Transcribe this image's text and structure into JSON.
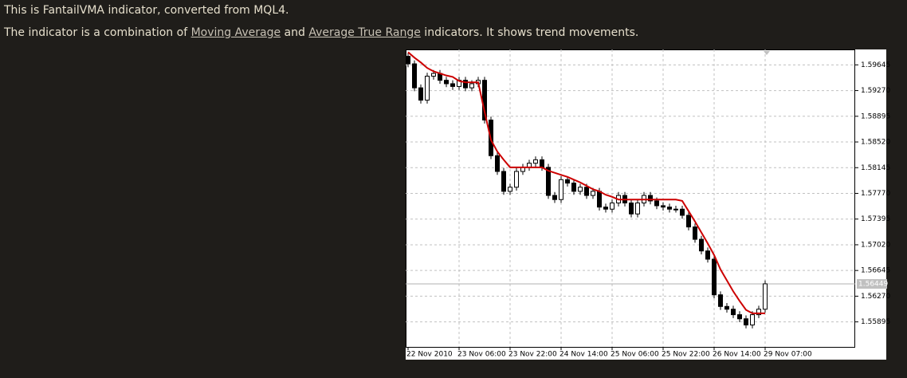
{
  "intro": "This is FantailVMA indicator, converted from MQL4.",
  "description": {
    "before": "The indicator is a combination of ",
    "link1": "Moving Average",
    "middle": " and ",
    "link2": "Average True Range",
    "after": " indicators. It shows trend movements."
  },
  "chart_data": {
    "type": "candlestick",
    "categories": [
      "22 Nov 2010",
      null,
      null,
      null,
      null,
      null,
      null,
      null,
      "23 Nov 06:00",
      null,
      null,
      null,
      null,
      null,
      null,
      null,
      "23 Nov 22:00",
      null,
      null,
      null,
      null,
      null,
      null,
      null,
      "24 Nov 14:00",
      null,
      null,
      null,
      null,
      null,
      null,
      null,
      "25 Nov 06:00",
      null,
      null,
      null,
      null,
      null,
      null,
      null,
      "25 Nov 22:00",
      null,
      null,
      null,
      null,
      null,
      null,
      null,
      "26 Nov 14:00",
      null,
      null,
      null,
      null,
      null,
      null,
      null,
      "29 Nov 07:00"
    ],
    "open": [
      1.5977,
      1.5966,
      1.5931,
      1.5913,
      1.5948,
      1.5952,
      1.5942,
      1.5937,
      1.5933,
      1.5942,
      1.5931,
      1.5937,
      1.5942,
      1.5884,
      1.5832,
      1.5809,
      1.578,
      1.5786,
      1.5809,
      1.5815,
      1.5821,
      1.5826,
      1.5815,
      1.5774,
      1.5768,
      1.5797,
      1.5792,
      1.578,
      1.5786,
      1.5774,
      1.578,
      1.5757,
      1.5754,
      1.5763,
      1.5774,
      1.5763,
      1.5747,
      1.5763,
      1.5774,
      1.5766,
      1.5759,
      1.5757,
      1.5754,
      1.5754,
      1.5745,
      1.5728,
      1.571,
      1.5693,
      1.5681,
      1.5629,
      1.5612,
      1.5608,
      1.56,
      1.5594,
      1.5585,
      1.56,
      1.5608
    ],
    "high": [
      1.5982,
      1.5971,
      1.5936,
      1.5953,
      1.5957,
      1.5957,
      1.5947,
      1.5942,
      1.5947,
      1.5947,
      1.5942,
      1.5947,
      1.5947,
      1.5889,
      1.5837,
      1.5814,
      1.5791,
      1.5814,
      1.582,
      1.5826,
      1.5831,
      1.5831,
      1.582,
      1.5779,
      1.5802,
      1.5802,
      1.5797,
      1.5791,
      1.5791,
      1.5785,
      1.5785,
      1.5762,
      1.5768,
      1.5779,
      1.5779,
      1.5768,
      1.5768,
      1.5779,
      1.5779,
      1.5771,
      1.5764,
      1.5762,
      1.5759,
      1.5759,
      1.575,
      1.5733,
      1.5715,
      1.5698,
      1.5686,
      1.5634,
      1.5617,
      1.5613,
      1.5605,
      1.5599,
      1.5605,
      1.5613,
      1.565
    ],
    "low": [
      1.5961,
      1.5926,
      1.5908,
      1.5908,
      1.5943,
      1.5937,
      1.5932,
      1.5928,
      1.5928,
      1.5926,
      1.5926,
      1.5932,
      1.5879,
      1.5827,
      1.5804,
      1.5775,
      1.5775,
      1.5781,
      1.5804,
      1.581,
      1.5816,
      1.581,
      1.5769,
      1.5763,
      1.5763,
      1.5787,
      1.5775,
      1.5775,
      1.5769,
      1.5769,
      1.5752,
      1.5749,
      1.5749,
      1.5758,
      1.5758,
      1.5742,
      1.5742,
      1.5758,
      1.5761,
      1.5754,
      1.5752,
      1.5749,
      1.5749,
      1.574,
      1.5723,
      1.5705,
      1.5688,
      1.5676,
      1.5624,
      1.5607,
      1.5603,
      1.5595,
      1.5589,
      1.558,
      1.558,
      1.5595,
      1.5603
    ],
    "close": [
      1.5966,
      1.5931,
      1.5913,
      1.5948,
      1.5952,
      1.5942,
      1.5937,
      1.5933,
      1.5942,
      1.5931,
      1.5937,
      1.5942,
      1.5884,
      1.5832,
      1.5809,
      1.578,
      1.5786,
      1.5809,
      1.5815,
      1.5821,
      1.5826,
      1.5815,
      1.5774,
      1.5768,
      1.5797,
      1.5792,
      1.578,
      1.5786,
      1.5774,
      1.578,
      1.5757,
      1.5754,
      1.5763,
      1.5774,
      1.5763,
      1.5747,
      1.5763,
      1.5774,
      1.5766,
      1.5759,
      1.5757,
      1.5754,
      1.5754,
      1.5745,
      1.5728,
      1.571,
      1.5693,
      1.5681,
      1.5629,
      1.5612,
      1.5608,
      1.56,
      1.5594,
      1.5585,
      1.56,
      1.5608,
      1.5645
    ],
    "indicator": {
      "color": "#cc0000",
      "values": [
        1.5983,
        1.5975,
        1.5968,
        1.596,
        1.5955,
        1.5952,
        1.5949,
        1.5947,
        1.5941,
        1.5939,
        1.5939,
        1.5939,
        1.5896,
        1.5855,
        1.5838,
        1.5826,
        1.5815,
        1.5815,
        1.5815,
        1.5815,
        1.5815,
        1.5815,
        1.581,
        1.5807,
        1.5804,
        1.5801,
        1.5797,
        1.5793,
        1.5788,
        1.5783,
        1.578,
        1.5775,
        1.5772,
        1.5768,
        1.5768,
        1.5768,
        1.5768,
        1.5768,
        1.5768,
        1.5768,
        1.5768,
        1.5768,
        1.5768,
        1.5766,
        1.5751,
        1.5736,
        1.572,
        1.5704,
        1.5687,
        1.5666,
        1.565,
        1.5634,
        1.562,
        1.5607,
        1.5602,
        1.5602,
        1.5602
      ]
    },
    "last_price": 1.56449,
    "ylim": [
      1.5553,
      1.5987
    ],
    "yticks": [
      1.59645,
      {
        "value": 1.5927,
        "label": "1.59270"
      },
      1.58895,
      {
        "value": 1.5852,
        "label": "1.58520"
      },
      1.58145,
      {
        "value": 1.5777,
        "label": "1.57770"
      },
      1.57395,
      {
        "value": 1.5702,
        "label": "1.57020"
      },
      1.56645,
      {
        "value": 1.5627,
        "label": "1.56270"
      },
      1.55895
    ],
    "grid": true
  }
}
